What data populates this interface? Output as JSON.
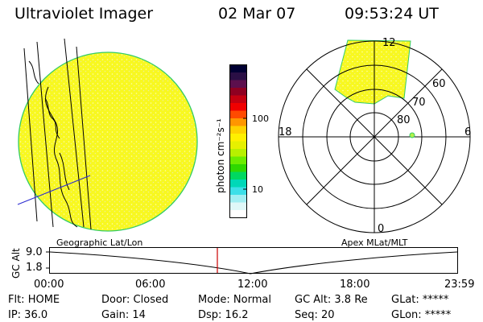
{
  "header": {
    "instrument": "Ultraviolet Imager",
    "date": "02 Mar 07",
    "time": "09:53:24 UT"
  },
  "colorbar": {
    "unit_label": "photon cm⁻²s⁻¹",
    "ticks": [
      "100",
      "10"
    ],
    "colors": [
      "#000033",
      "#2a0f45",
      "#5c0f4d",
      "#8e0021",
      "#c40010",
      "#f00000",
      "#ff4a00",
      "#ff9600",
      "#ffd200",
      "#fff000",
      "#e6f000",
      "#b8f000",
      "#6cec00",
      "#2fd800",
      "#00d860",
      "#00d8b8",
      "#3cdfe8",
      "#a0eef2",
      "#dff8f8",
      "#ffffff"
    ]
  },
  "polar_plot": {
    "labels": {
      "top": "12",
      "bottom": "0",
      "left": "18",
      "right": "6"
    },
    "rings": [
      "60",
      "70",
      "80"
    ]
  },
  "geo_label": "Geographic Lat/Lon",
  "apex_label": "Apex MLat/MLT",
  "timeline": {
    "axis_label": "GC Alt",
    "y_ticks": [
      "9.0",
      "1.8"
    ],
    "x_ticks": [
      "00:00",
      "06:00",
      "12:00",
      "18:00",
      "23:59"
    ]
  },
  "status": {
    "flt": "Flt:  HOME",
    "ip": "IP:  36.0",
    "door": "Door:  Closed",
    "gain": "Gain:  14",
    "mode": "Mode:  Normal",
    "dsp": "Dsp:    16.2",
    "gcalt": "GC Alt:  3.8 Re",
    "seq": "Seq:  20",
    "glat": "GLat:  *****",
    "glon": "GLon:  *****"
  },
  "colors": {
    "disk_fill": "#fafa1e",
    "disk_edge": "#33cc66",
    "marker": "#cc0000"
  }
}
